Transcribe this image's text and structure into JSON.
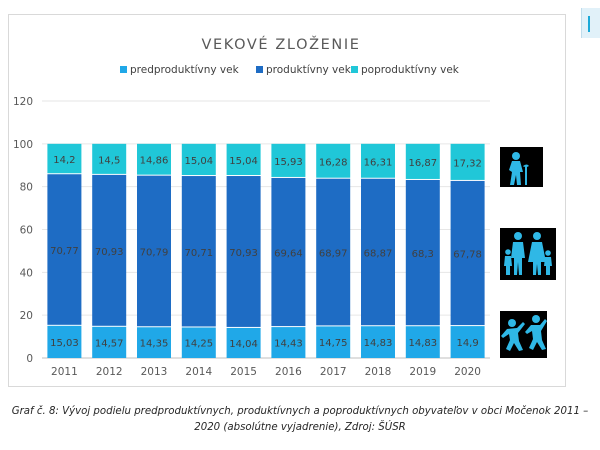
{
  "chart_data": {
    "type": "bar",
    "stacked": true,
    "title": "VEKOVÉ ZLOŽENIE",
    "categories": [
      "2011",
      "2012",
      "2013",
      "2014",
      "2015",
      "2016",
      "2017",
      "2018",
      "2019",
      "2020"
    ],
    "series": [
      {
        "name": "predproduktívny vek",
        "color": "#20a8e8",
        "values": [
          15.03,
          14.57,
          14.35,
          14.25,
          14.04,
          14.43,
          14.75,
          14.83,
          14.83,
          14.9
        ],
        "labels": [
          "15,03",
          "14,57",
          "14,35",
          "14,25",
          "14,04",
          "14,43",
          "14,75",
          "14,83",
          "14,83",
          "14,9"
        ]
      },
      {
        "name": "produktívny vek",
        "color": "#1e6cc4",
        "values": [
          70.77,
          70.93,
          70.79,
          70.71,
          70.93,
          69.64,
          68.97,
          68.87,
          68.3,
          67.78
        ],
        "labels": [
          "70,77",
          "70,93",
          "70,79",
          "70,71",
          "70,93",
          "69,64",
          "68,97",
          "68,87",
          "68,3",
          "67,78"
        ]
      },
      {
        "name": "poproduktívny vek",
        "color": "#20c7d8",
        "values": [
          14.2,
          14.5,
          14.86,
          15.04,
          15.04,
          15.93,
          16.28,
          16.31,
          16.87,
          17.32
        ],
        "labels": [
          "14,2",
          "14,5",
          "14,86",
          "15,04",
          "15,04",
          "15,93",
          "16,28",
          "16,31",
          "16,87",
          "17,32"
        ]
      }
    ],
    "y_ticks": [
      "0",
      "20",
      "40",
      "60",
      "80",
      "100",
      "120"
    ],
    "ylim": [
      0,
      120
    ],
    "grid": true,
    "legend_position": "top"
  },
  "icons": [
    "elderly-person-icon",
    "family-icon",
    "children-playing-icon"
  ],
  "caption": {
    "line1": "Graf č. 8: Vývoj podielu predproduktívnych, produktívnych a poproduktívnych obyvateľov v obci Močenok 2011 –",
    "line2": "2020 (absolútne vyjadrenie), Zdroj: ŠÚSR"
  }
}
